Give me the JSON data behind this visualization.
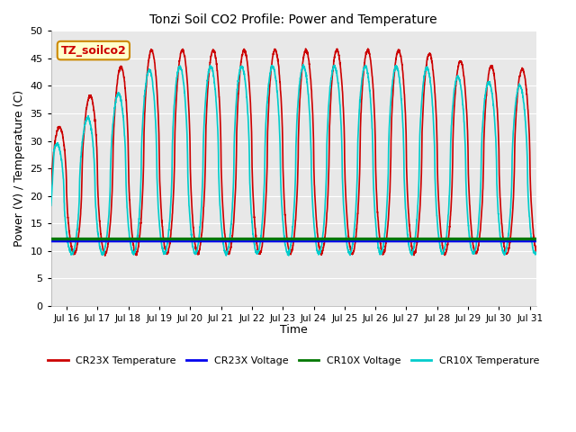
{
  "title": "Tonzi Soil CO2 Profile: Power and Temperature",
  "xlabel": "Time",
  "ylabel": "Power (V) / Temperature (C)",
  "ylim": [
    0,
    50
  ],
  "xlim_days": [
    15.5,
    31.2
  ],
  "plot_bg_color": "#e8e8e8",
  "grid_color": "#ffffff",
  "annotation_text": "TZ_soilco2",
  "annotation_bg": "#ffffcc",
  "annotation_border": "#cc8800",
  "cr23x_temp_color": "#cc0000",
  "cr23x_volt_color": "#0000ee",
  "cr10x_volt_color": "#007700",
  "cr10x_temp_color": "#00cccc",
  "cr10x_volt_value": 12.1,
  "cr23x_volt_value": 11.7,
  "xtick_positions": [
    16,
    17,
    18,
    19,
    20,
    21,
    22,
    23,
    24,
    25,
    26,
    27,
    28,
    29,
    30,
    31
  ],
  "xtick_labels": [
    "Jul 16",
    "Jul 17",
    "Jul 18",
    "Jul 19",
    "Jul 20",
    "Jul 21",
    "Jul 22",
    "Jul 23",
    "Jul 24",
    "Jul 25",
    "Jul 26",
    "Jul 27",
    "Jul 28",
    "Jul 29",
    "Jul 30",
    "Jul 31"
  ],
  "ytick_positions": [
    0,
    5,
    10,
    15,
    20,
    25,
    30,
    35,
    40,
    45,
    50
  ],
  "legend_entries": [
    "CR23X Temperature",
    "CR23X Voltage",
    "CR10X Voltage",
    "CR10X Temperature"
  ],
  "legend_colors": [
    "#cc0000",
    "#0000ee",
    "#007700",
    "#00cccc"
  ],
  "linewidth": 1.2,
  "fig_width": 6.4,
  "fig_height": 4.8
}
